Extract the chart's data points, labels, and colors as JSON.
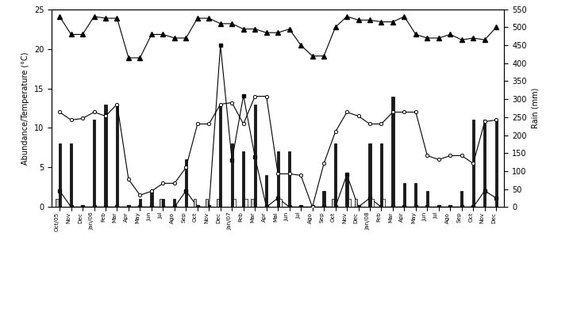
{
  "months": [
    "Oct/05",
    "Nov",
    "Dec",
    "Jan/06",
    "Feb",
    "Mar",
    "Apr",
    "May",
    "Jun",
    "Jul",
    "Ago",
    "Sep",
    "Oct",
    "Nov",
    "Dec",
    "Jan/07",
    "Feb",
    "Mar",
    "Apr",
    "Mai",
    "Jun",
    "Jul",
    "Ago",
    "Sep",
    "Oct",
    "Nov",
    "Dec",
    "Jan/08",
    "Feb",
    "Mar",
    "Apr",
    "May",
    "Jun",
    "Jul",
    "Ago",
    "Sep",
    "Oct",
    "Nov",
    "Dec"
  ],
  "young": [
    1,
    0,
    0,
    0,
    0,
    0,
    0,
    0,
    0,
    1,
    0,
    0,
    1,
    1,
    1,
    0,
    0,
    1,
    0,
    0,
    0,
    0,
    0,
    0,
    1,
    0,
    1,
    0,
    0,
    0,
    0,
    0,
    0,
    0,
    0,
    0,
    0,
    0,
    0
  ],
  "male": [
    8,
    8,
    0,
    11,
    13,
    13,
    0,
    1,
    2,
    1,
    1,
    6,
    0,
    0,
    13,
    8,
    7,
    13,
    4,
    7,
    7,
    0,
    0,
    2,
    8,
    4,
    0,
    8,
    8,
    14,
    3,
    3,
    2,
    0,
    0,
    2,
    11,
    11,
    11
  ],
  "female": [
    0,
    0,
    0,
    0,
    0,
    0,
    0,
    0,
    0,
    0,
    0,
    0,
    0,
    0,
    0,
    1,
    1,
    0,
    0,
    1,
    0,
    0,
    0,
    0,
    0,
    1,
    0,
    1,
    1,
    0,
    0,
    0,
    0,
    0,
    0,
    0,
    0,
    0,
    0
  ],
  "rain_mm": [
    45,
    0,
    0,
    0,
    0,
    0,
    0,
    0,
    0,
    0,
    0,
    45,
    0,
    0,
    450,
    130,
    310,
    140,
    0,
    25,
    0,
    0,
    0,
    0,
    0,
    90,
    0,
    25,
    0,
    0,
    0,
    0,
    0,
    0,
    0,
    0,
    0,
    45,
    25
  ],
  "temp_max_r": [
    530,
    480,
    480,
    530,
    525,
    525,
    415,
    415,
    480,
    480,
    470,
    470,
    525,
    525,
    510,
    510,
    495,
    495,
    485,
    485,
    495,
    450,
    420,
    420,
    500,
    530,
    520,
    520,
    515,
    515,
    530,
    480,
    470,
    470,
    480,
    465,
    470,
    465,
    500
  ],
  "temp_min": [
    12.0,
    11.0,
    11.2,
    12.0,
    11.5,
    13.0,
    3.5,
    1.5,
    2.0,
    3.0,
    3.0,
    5.0,
    10.5,
    10.5,
    13.0,
    13.2,
    10.5,
    14.0,
    14.0,
    4.2,
    4.2,
    4.0,
    0.0,
    5.5,
    9.5,
    12.0,
    11.5,
    10.5,
    10.5,
    12.0,
    12.0,
    12.0,
    6.5,
    6.0,
    6.5,
    6.5,
    5.5,
    10.8,
    11.0
  ],
  "ylim_left": [
    0,
    25
  ],
  "ylim_right": [
    0,
    550
  ],
  "ylabel_left": "Abundance/Temperature (°C)",
  "ylabel_right": "Rain (mm)",
  "bar_width": 0.22
}
